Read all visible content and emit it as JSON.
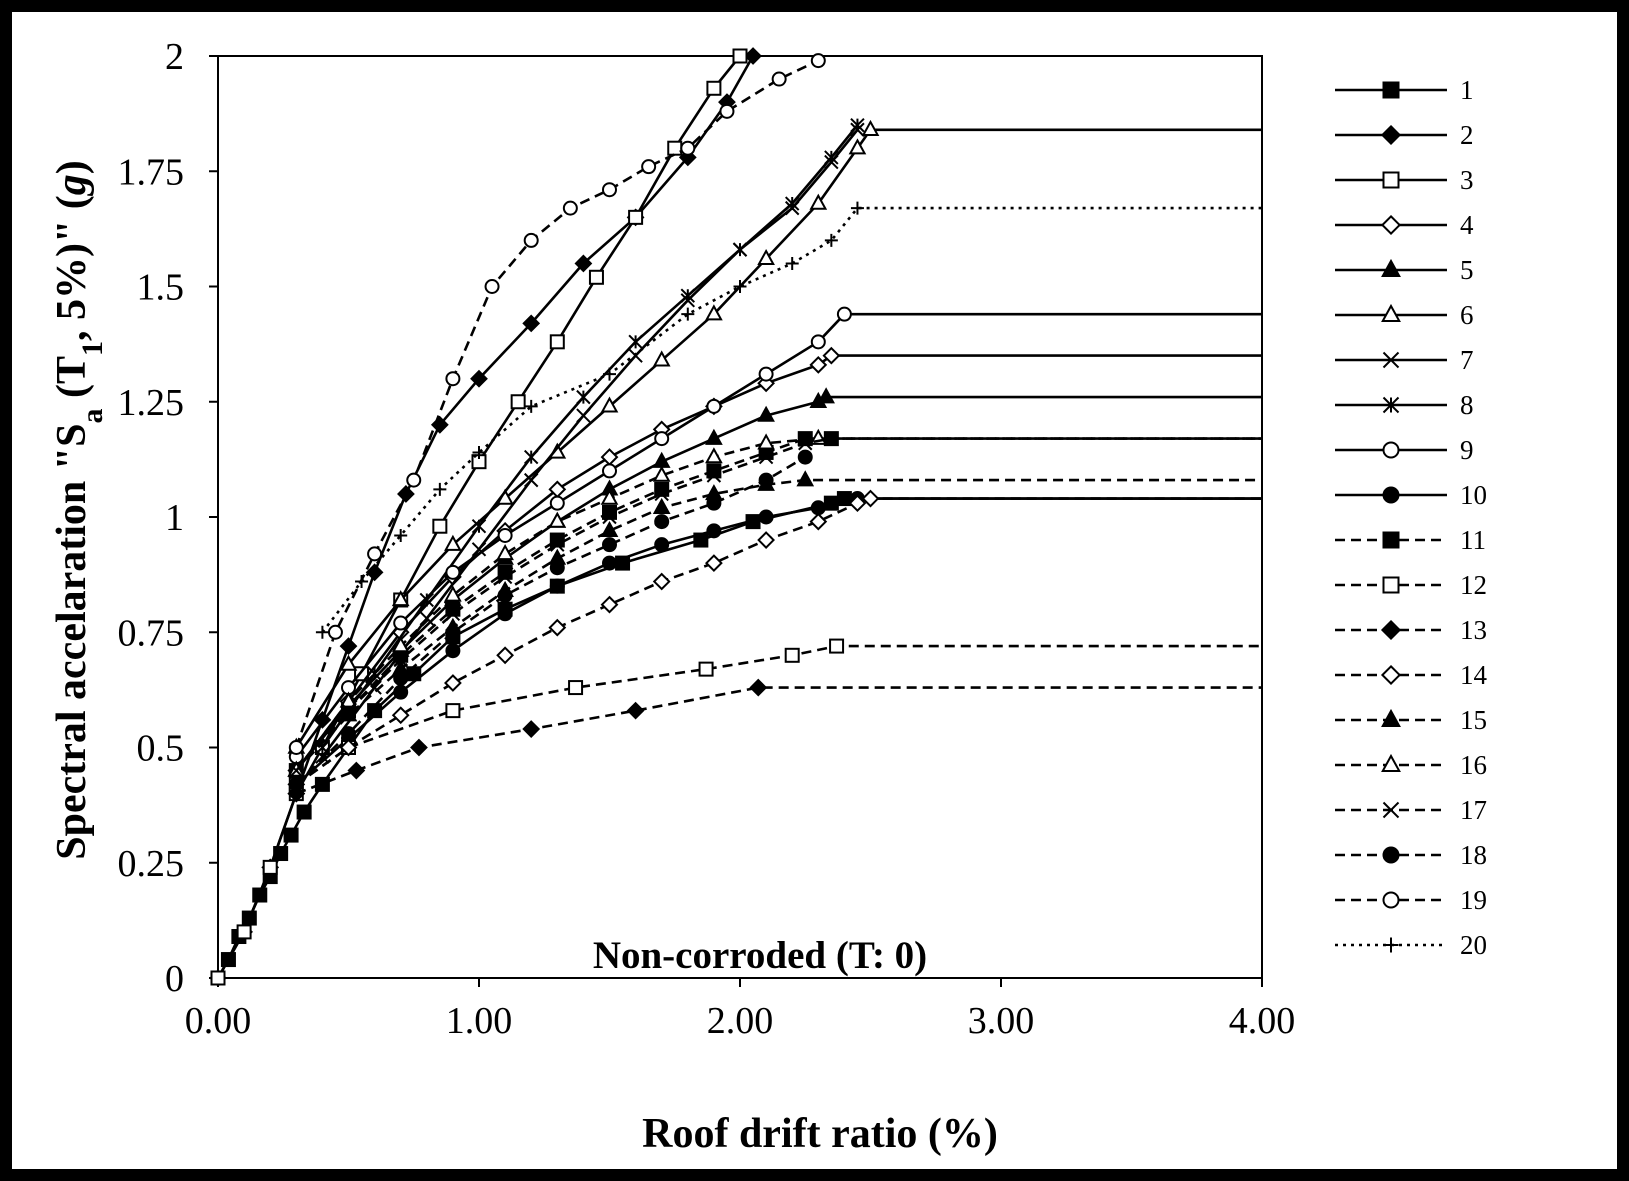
{
  "chart_data": {
    "type": "line",
    "annotation": "Non-corroded (T: 0)",
    "xlabel": "Roof drift ratio (%)",
    "ylabel": {
      "pre": "Spectral accelaration  \"S",
      "sub_a": "a",
      "mid": " (T",
      "sub_1": "1",
      "post": ", 5%)\"  (",
      "unit": "g",
      "close": ")"
    },
    "xlim": [
      0,
      4
    ],
    "ylim": [
      0,
      2
    ],
    "x_ticks": [
      "0.00",
      "1.00",
      "2.00",
      "3.00",
      "4.00"
    ],
    "x_tick_values": [
      0,
      1,
      2,
      3,
      4
    ],
    "y_ticks": [
      "0",
      "0.25",
      "0.5",
      "0.75",
      "1",
      "1.25",
      "1.5",
      "1.75",
      "2"
    ],
    "y_tick_values": [
      0,
      0.25,
      0.5,
      0.75,
      1,
      1.25,
      1.5,
      1.75,
      2
    ],
    "grid": false,
    "legend_position": "right",
    "series": [
      {
        "name": "1",
        "marker": "square-filled",
        "style": "solid",
        "x": [
          0,
          0.04,
          0.08,
          0.12,
          0.16,
          0.2,
          0.24,
          0.28,
          0.33,
          0.4,
          0.5,
          0.6,
          0.75,
          0.9,
          1.1,
          1.3,
          1.55,
          1.85,
          2.05,
          2.35,
          2.4,
          4.0
        ],
        "y": [
          0,
          0.04,
          0.09,
          0.13,
          0.18,
          0.22,
          0.27,
          0.31,
          0.36,
          0.42,
          0.5,
          0.58,
          0.66,
          0.74,
          0.8,
          0.85,
          0.9,
          0.95,
          0.99,
          1.03,
          1.04,
          1.04
        ]
      },
      {
        "name": "2",
        "marker": "diamond-filled",
        "style": "solid",
        "x": [
          0,
          0.1,
          0.2,
          0.3,
          0.4,
          0.5,
          0.6,
          0.72,
          0.85,
          1.0,
          1.2,
          1.4,
          1.6,
          1.8,
          1.95,
          2.05
        ],
        "y": [
          0,
          0.1,
          0.24,
          0.4,
          0.56,
          0.72,
          0.88,
          1.05,
          1.2,
          1.3,
          1.42,
          1.55,
          1.65,
          1.78,
          1.9,
          2.0
        ]
      },
      {
        "name": "3",
        "marker": "square-open",
        "style": "solid",
        "x": [
          0,
          0.1,
          0.2,
          0.3,
          0.4,
          0.55,
          0.7,
          0.85,
          1.0,
          1.15,
          1.3,
          1.45,
          1.6,
          1.75,
          1.9,
          2.0
        ],
        "y": [
          0,
          0.1,
          0.24,
          0.4,
          0.5,
          0.66,
          0.82,
          0.98,
          1.12,
          1.25,
          1.38,
          1.52,
          1.65,
          1.8,
          1.93,
          2.0
        ]
      },
      {
        "name": "4",
        "marker": "diamond-open",
        "style": "solid",
        "x": [
          0.3,
          0.5,
          0.7,
          0.9,
          1.1,
          1.3,
          1.5,
          1.7,
          1.9,
          2.1,
          2.3,
          2.35,
          4.0
        ],
        "y": [
          0.45,
          0.6,
          0.75,
          0.87,
          0.97,
          1.06,
          1.13,
          1.19,
          1.24,
          1.29,
          1.33,
          1.35,
          1.35
        ]
      },
      {
        "name": "5",
        "marker": "triangle-filled",
        "style": "solid",
        "x": [
          0.3,
          0.5,
          0.7,
          0.9,
          1.1,
          1.3,
          1.5,
          1.7,
          1.9,
          2.1,
          2.3,
          2.33,
          4.0
        ],
        "y": [
          0.45,
          0.59,
          0.71,
          0.82,
          0.91,
          0.99,
          1.06,
          1.12,
          1.17,
          1.22,
          1.25,
          1.26,
          1.26
        ]
      },
      {
        "name": "6",
        "marker": "triangle-open",
        "style": "solid",
        "x": [
          0.3,
          0.5,
          0.7,
          0.9,
          1.1,
          1.3,
          1.5,
          1.7,
          1.9,
          2.1,
          2.3,
          2.45,
          2.5,
          4.0
        ],
        "y": [
          0.5,
          0.68,
          0.82,
          0.94,
          1.04,
          1.14,
          1.24,
          1.34,
          1.44,
          1.56,
          1.68,
          1.8,
          1.84,
          1.84
        ]
      },
      {
        "name": "7",
        "marker": "x",
        "style": "solid",
        "x": [
          0.4,
          0.6,
          0.8,
          1.0,
          1.2,
          1.4,
          1.6,
          1.8,
          2.0,
          2.2,
          2.35,
          2.45
        ],
        "y": [
          0.48,
          0.63,
          0.78,
          0.93,
          1.08,
          1.22,
          1.35,
          1.47,
          1.58,
          1.67,
          1.77,
          1.84
        ]
      },
      {
        "name": "8",
        "marker": "asterisk",
        "style": "solid",
        "x": [
          0.4,
          0.6,
          0.8,
          1.0,
          1.2,
          1.4,
          1.6,
          1.8,
          2.0,
          2.2,
          2.35,
          2.45
        ],
        "y": [
          0.5,
          0.66,
          0.82,
          0.98,
          1.13,
          1.26,
          1.38,
          1.48,
          1.58,
          1.68,
          1.78,
          1.85
        ]
      },
      {
        "name": "9",
        "marker": "circle-open",
        "style": "solid",
        "x": [
          0.3,
          0.5,
          0.7,
          0.9,
          1.1,
          1.3,
          1.5,
          1.7,
          1.9,
          2.1,
          2.3,
          2.4,
          4.0
        ],
        "y": [
          0.48,
          0.63,
          0.77,
          0.88,
          0.96,
          1.03,
          1.1,
          1.17,
          1.24,
          1.31,
          1.38,
          1.44,
          1.44
        ]
      },
      {
        "name": "10",
        "marker": "circle-filled",
        "style": "solid",
        "x": [
          0.3,
          0.5,
          0.7,
          0.9,
          1.1,
          1.3,
          1.5,
          1.7,
          1.9,
          2.1,
          2.3,
          2.45,
          4.0
        ],
        "y": [
          0.42,
          0.52,
          0.62,
          0.71,
          0.79,
          0.85,
          0.9,
          0.94,
          0.97,
          1.0,
          1.02,
          1.04,
          1.04
        ]
      },
      {
        "name": "11",
        "marker": "square-filled",
        "style": "dashed",
        "x": [
          0.3,
          0.5,
          0.7,
          0.9,
          1.1,
          1.3,
          1.5,
          1.7,
          1.9,
          2.1,
          2.25,
          2.35,
          4.0
        ],
        "y": [
          0.45,
          0.58,
          0.7,
          0.8,
          0.88,
          0.95,
          1.01,
          1.06,
          1.1,
          1.14,
          1.17,
          1.17,
          1.17
        ]
      },
      {
        "name": "12",
        "marker": "square-open",
        "style": "dashed",
        "x": [
          0.3,
          0.5,
          0.9,
          1.37,
          1.87,
          2.2,
          2.37,
          4.0
        ],
        "y": [
          0.42,
          0.5,
          0.58,
          0.63,
          0.67,
          0.7,
          0.72,
          0.72
        ]
      },
      {
        "name": "13",
        "marker": "diamond-filled",
        "style": "dashed",
        "x": [
          0.3,
          0.53,
          0.77,
          1.2,
          1.6,
          2.07,
          4.0
        ],
        "y": [
          0.4,
          0.45,
          0.5,
          0.54,
          0.58,
          0.63,
          0.63
        ]
      },
      {
        "name": "14",
        "marker": "diamond-open",
        "style": "dashed",
        "x": [
          0.3,
          0.5,
          0.7,
          0.9,
          1.1,
          1.3,
          1.5,
          1.7,
          1.9,
          2.1,
          2.3,
          2.45,
          2.5,
          4.0
        ],
        "y": [
          0.42,
          0.5,
          0.57,
          0.64,
          0.7,
          0.76,
          0.81,
          0.86,
          0.9,
          0.95,
          0.99,
          1.03,
          1.04,
          1.04
        ]
      },
      {
        "name": "15",
        "marker": "triangle-filled",
        "style": "dashed",
        "x": [
          0.3,
          0.5,
          0.7,
          0.9,
          1.1,
          1.3,
          1.5,
          1.7,
          1.9,
          2.1,
          2.25,
          4.0
        ],
        "y": [
          0.45,
          0.57,
          0.67,
          0.76,
          0.84,
          0.91,
          0.97,
          1.02,
          1.05,
          1.07,
          1.08,
          1.08
        ]
      },
      {
        "name": "16",
        "marker": "triangle-open",
        "style": "dashed",
        "x": [
          0.3,
          0.5,
          0.7,
          0.9,
          1.1,
          1.3,
          1.5,
          1.7,
          1.9,
          2.1,
          2.3,
          4.0
        ],
        "y": [
          0.45,
          0.6,
          0.72,
          0.83,
          0.92,
          0.99,
          1.04,
          1.09,
          1.13,
          1.16,
          1.17,
          1.17
        ]
      },
      {
        "name": "17",
        "marker": "x",
        "style": "dashed",
        "x": [
          0.3,
          0.5,
          0.7,
          0.9,
          1.1,
          1.3,
          1.5,
          1.7,
          1.9,
          2.1,
          2.25,
          2.35,
          4.0
        ],
        "y": [
          0.45,
          0.58,
          0.69,
          0.79,
          0.87,
          0.94,
          1.0,
          1.05,
          1.09,
          1.13,
          1.16,
          1.17,
          1.17
        ]
      },
      {
        "name": "18",
        "marker": "circle-filled",
        "style": "dashed",
        "x": [
          0.3,
          0.5,
          0.7,
          0.9,
          1.1,
          1.3,
          1.5,
          1.7,
          1.9,
          2.1,
          2.25
        ],
        "y": [
          0.42,
          0.53,
          0.65,
          0.75,
          0.83,
          0.89,
          0.94,
          0.99,
          1.03,
          1.08,
          1.13
        ]
      },
      {
        "name": "19",
        "marker": "circle-open",
        "style": "dashed",
        "x": [
          0.3,
          0.45,
          0.6,
          0.75,
          0.9,
          1.05,
          1.2,
          1.35,
          1.5,
          1.65,
          1.8,
          1.95,
          2.15,
          2.3
        ],
        "y": [
          0.5,
          0.75,
          0.92,
          1.08,
          1.3,
          1.5,
          1.6,
          1.67,
          1.71,
          1.76,
          1.8,
          1.88,
          1.95,
          1.99
        ]
      },
      {
        "name": "20",
        "marker": "plus",
        "style": "dotted",
        "x": [
          0.4,
          0.55,
          0.7,
          0.85,
          1.0,
          1.2,
          1.5,
          1.8,
          2.0,
          2.2,
          2.35,
          2.45,
          4.0
        ],
        "y": [
          0.75,
          0.86,
          0.96,
          1.06,
          1.14,
          1.24,
          1.31,
          1.44,
          1.5,
          1.55,
          1.6,
          1.67,
          1.67
        ]
      }
    ]
  }
}
